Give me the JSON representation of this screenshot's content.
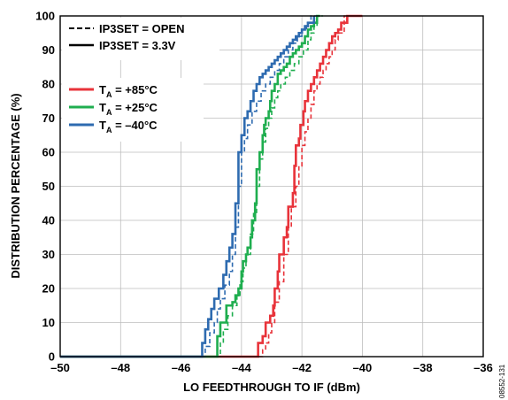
{
  "chart_data": {
    "type": "line",
    "title": "",
    "xlabel": "LO FEEDTHROUGH TO IF (dBm)",
    "ylabel": "DISTRIBUTION PERCENTAGE (%)",
    "xlim": [
      -50,
      -36
    ],
    "ylim": [
      0,
      100
    ],
    "x_ticks": [
      -50,
      -48,
      -46,
      -44,
      -42,
      -40,
      -38,
      -36
    ],
    "x_tick_labels": [
      "–50",
      "–48",
      "–46",
      "–44",
      "–42",
      "–40",
      "–38",
      "–36"
    ],
    "y_ticks": [
      0,
      10,
      20,
      30,
      40,
      50,
      60,
      70,
      80,
      90,
      100
    ],
    "y_tick_labels": [
      "0",
      "10",
      "20",
      "30",
      "40",
      "50",
      "60",
      "70",
      "80",
      "90",
      "100"
    ],
    "grid": true,
    "legend_position": "top-left",
    "line_style_legend": [
      {
        "label": "IP3SET = OPEN",
        "style": "dashed"
      },
      {
        "label": "IP3SET = 3.3V",
        "style": "solid"
      }
    ],
    "color_legend": [
      {
        "prefix": "T",
        "sub": "A",
        "suffix": " = +85°C",
        "color": "#e8333a"
      },
      {
        "prefix": "T",
        "sub": "A",
        "suffix": " = +25°C",
        "color": "#1fae4f"
      },
      {
        "prefix": "T",
        "sub": "A",
        "suffix": " = –40°C",
        "color": "#2e6bb0"
      }
    ],
    "series": [
      {
        "temperature": "+85°C",
        "ip3set": "3.3V",
        "color": "#e8333a",
        "style": "solid",
        "x": [
          -50,
          -43.45,
          -43.45,
          -43.3,
          -43.2,
          -43.05,
          -42.95,
          -42.9,
          -42.8,
          -42.75,
          -42.6,
          -42.5,
          -42.45,
          -42.3,
          -42.25,
          -42.2,
          -42.1,
          -42.05,
          -41.95,
          -41.9,
          -41.8,
          -41.7,
          -41.6,
          -41.5,
          -41.4,
          -41.3,
          -41.2,
          -41.1,
          -41.0,
          -40.9,
          -40.8,
          -40.7,
          -40.5,
          -40.0
        ],
        "y": [
          0,
          0,
          4,
          6,
          10,
          12,
          15,
          20,
          25,
          30,
          35,
          38,
          44,
          48,
          56,
          62,
          64,
          68,
          72,
          75,
          78,
          80,
          82,
          84,
          86,
          88,
          90,
          92,
          94,
          95,
          96,
          98,
          100,
          100
        ]
      },
      {
        "temperature": "+85°C",
        "ip3set": "OPEN",
        "color": "#e8333a",
        "style": "dashed",
        "x": [
          -50,
          -43.35,
          -43.3,
          -43.2,
          -43.1,
          -43.0,
          -42.9,
          -42.75,
          -42.6,
          -42.45,
          -42.35,
          -42.2,
          -42.1,
          -42.0,
          -41.9,
          -41.8,
          -41.7,
          -41.6,
          -41.5,
          -41.4,
          -41.3,
          -41.2,
          -41.1,
          -41.0,
          -40.9,
          -40.8,
          -40.6,
          -40.0
        ],
        "y": [
          0,
          0,
          2,
          4,
          7,
          10,
          16,
          22,
          30,
          38,
          44,
          50,
          56,
          62,
          66,
          70,
          74,
          78,
          80,
          82,
          84,
          86,
          88,
          90,
          93,
          95,
          100,
          100
        ]
      },
      {
        "temperature": "+25°C",
        "ip3set": "3.3V",
        "color": "#1fae4f",
        "style": "solid",
        "x": [
          -50,
          -44.8,
          -44.8,
          -44.7,
          -44.5,
          -44.3,
          -44.2,
          -44.1,
          -44.0,
          -43.95,
          -43.85,
          -43.8,
          -43.7,
          -43.65,
          -43.55,
          -43.5,
          -43.4,
          -43.3,
          -43.25,
          -43.2,
          -43.1,
          -43.05,
          -43.0,
          -42.9,
          -42.8,
          -42.7,
          -42.6,
          -42.5,
          -42.4,
          -42.3,
          -42.2,
          -42.1,
          -42.0,
          -41.9,
          -41.8,
          -41.7,
          -41.6,
          -41.5,
          -41.4
        ],
        "y": [
          0,
          0,
          6,
          10,
          15,
          16,
          18,
          20,
          25,
          28,
          30,
          32,
          35,
          40,
          45,
          55,
          60,
          65,
          68,
          70,
          72,
          75,
          78,
          80,
          83,
          84,
          85,
          86,
          88,
          89,
          90,
          91,
          92,
          94,
          96,
          97,
          98,
          100,
          100
        ]
      },
      {
        "temperature": "+25°C",
        "ip3set": "OPEN",
        "color": "#1fae4f",
        "style": "dashed",
        "x": [
          -50,
          -44.75,
          -44.7,
          -44.6,
          -44.45,
          -44.3,
          -44.15,
          -44.05,
          -43.95,
          -43.85,
          -43.7,
          -43.6,
          -43.5,
          -43.4,
          -43.3,
          -43.2,
          -43.1,
          -43.0,
          -42.9,
          -42.8,
          -42.7,
          -42.55,
          -42.4,
          -42.25,
          -42.1,
          -41.95,
          -41.8,
          -41.7,
          -41.6,
          -41.5,
          -41.3
        ],
        "y": [
          0,
          0,
          4,
          8,
          12,
          15,
          18,
          22,
          26,
          30,
          36,
          42,
          50,
          58,
          63,
          67,
          70,
          73,
          76,
          78,
          80,
          82,
          84,
          86,
          88,
          90,
          93,
          95,
          97,
          100,
          100
        ]
      },
      {
        "temperature": "–40°C",
        "ip3set": "3.3V",
        "color": "#2e6bb0",
        "style": "solid",
        "x": [
          -50,
          -45.3,
          -45.3,
          -45.2,
          -45.1,
          -45.0,
          -44.9,
          -44.75,
          -44.6,
          -44.5,
          -44.4,
          -44.3,
          -44.2,
          -44.1,
          -44.0,
          -43.9,
          -43.8,
          -43.7,
          -43.6,
          -43.5,
          -43.4,
          -43.3,
          -43.2,
          -43.1,
          -43.0,
          -42.9,
          -42.8,
          -42.7,
          -42.6,
          -42.5,
          -42.4,
          -42.3,
          -42.2,
          -42.1,
          -42.0,
          -41.9,
          -41.8,
          -41.6
        ],
        "y": [
          0,
          0,
          4,
          8,
          11,
          14,
          17,
          20,
          24,
          28,
          32,
          36,
          45,
          60,
          65,
          70,
          72,
          75,
          78,
          80,
          82,
          83,
          84,
          85,
          86,
          87,
          88,
          89,
          90,
          91,
          92,
          93,
          94,
          95,
          96,
          97,
          98,
          100
        ]
      },
      {
        "temperature": "–40°C",
        "ip3set": "OPEN",
        "color": "#2e6bb0",
        "style": "dashed",
        "x": [
          -50,
          -45.25,
          -45.2,
          -45.05,
          -44.9,
          -44.8,
          -44.7,
          -44.55,
          -44.4,
          -44.3,
          -44.2,
          -44.1,
          -44.0,
          -43.9,
          -43.8,
          -43.65,
          -43.5,
          -43.35,
          -43.2,
          -43.05,
          -42.9,
          -42.75,
          -42.6,
          -42.45,
          -42.3,
          -42.15,
          -42.0,
          -41.85,
          -41.7,
          -41.5
        ],
        "y": [
          0,
          0,
          3,
          7,
          10,
          14,
          17,
          21,
          25,
          30,
          38,
          50,
          60,
          64,
          68,
          72,
          75,
          78,
          80,
          82,
          84,
          86,
          88,
          90,
          92,
          94,
          96,
          98,
          100,
          100
        ]
      }
    ]
  },
  "figure_id": "08552-131"
}
